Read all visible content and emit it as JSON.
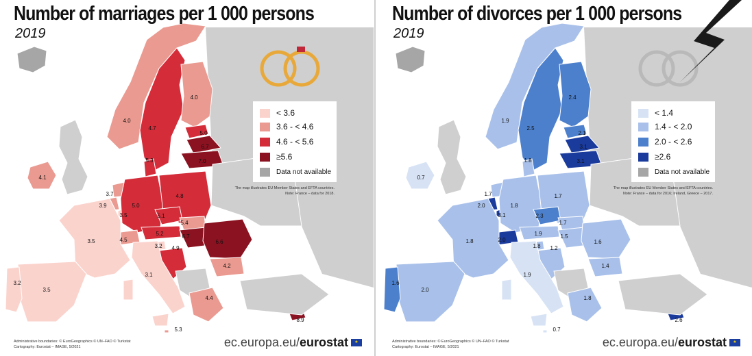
{
  "panels": [
    {
      "id": "marriages",
      "title": "Number of marriages per 1 000 persons",
      "year": "2019",
      "legend": [
        {
          "label": "< 3.6",
          "color": "#fbd3cd"
        },
        {
          "label": "3.6 - < 4.6",
          "color": "#ea9a90"
        },
        {
          "label": "4.6 - < 5.6",
          "color": "#d42c39"
        },
        {
          "label": "≥5.6",
          "color": "#8b1220"
        },
        {
          "label": "Data not available",
          "color": "#a6a6a6"
        }
      ],
      "note_lines": [
        "The map illustrates EU Member States and EFTA countries.",
        "Note: France – data for 2018."
      ],
      "icon": "wedding-rings-icon",
      "values": [
        "4.0",
        "4.0",
        "4.7",
        "5.0",
        "6.7",
        "7.0",
        "5.3",
        "4.1",
        "3.7",
        "3.9",
        "3.5",
        "5.0",
        "4.8",
        "5.1",
        "5.4",
        "5.2",
        "4.5",
        "3.5",
        "3.2",
        "4.9",
        "6.7",
        "6.6",
        "3.2",
        "3.5",
        "3.1",
        "4.2",
        "4.4",
        "8.9",
        "5.3"
      ],
      "credit_lines": [
        "Administrative boundaries: © EuroGeographics © UN–FAO © Turkstat",
        "Cartography: Eurostat – IMAGE, 5/2021"
      ],
      "brand_prefix": "ec.europa.eu/",
      "brand_bold": "eurostat"
    },
    {
      "id": "divorces",
      "title": "Number of divorces per 1 000 persons",
      "year": "2019",
      "legend": [
        {
          "label": "< 1.4",
          "color": "#d7e3f5"
        },
        {
          "label": "1.4 - < 2.0",
          "color": "#a9c1ea"
        },
        {
          "label": "2.0 - < 2.6",
          "color": "#4d80cc"
        },
        {
          "label": "≥2.6",
          "color": "#1a3a9c"
        },
        {
          "label": "Data not available",
          "color": "#a6a6a6"
        }
      ],
      "note_lines": [
        "The map illustrates EU Member States and EFTA countries.",
        "Note: France – data for 2016; Ireland, Greece – 2017."
      ],
      "icon": "broken-rings-icon",
      "values": [
        "2.4",
        "1.9",
        "2.5",
        "2.1",
        "3.1",
        "3.1",
        "1.8",
        "0.7",
        "1.7",
        "2.0",
        "3.1",
        "1.8",
        "1.7",
        "2.3",
        "1.7",
        "1.9",
        "2.0",
        "1.8",
        "1.8",
        "1.2",
        "1.5",
        "1.6",
        "1.6",
        "2.0",
        "1.9",
        "1.4",
        "1.8",
        "2.6",
        "0.7"
      ],
      "credit_lines": [
        "Administrative boundaries: © EuroGeographics © UN–FAO © Turkstat",
        "Cartography: Eurostat – IMAGE, 5/2021"
      ],
      "brand_prefix": "ec.europa.eu/",
      "brand_bold": "eurostat"
    }
  ]
}
